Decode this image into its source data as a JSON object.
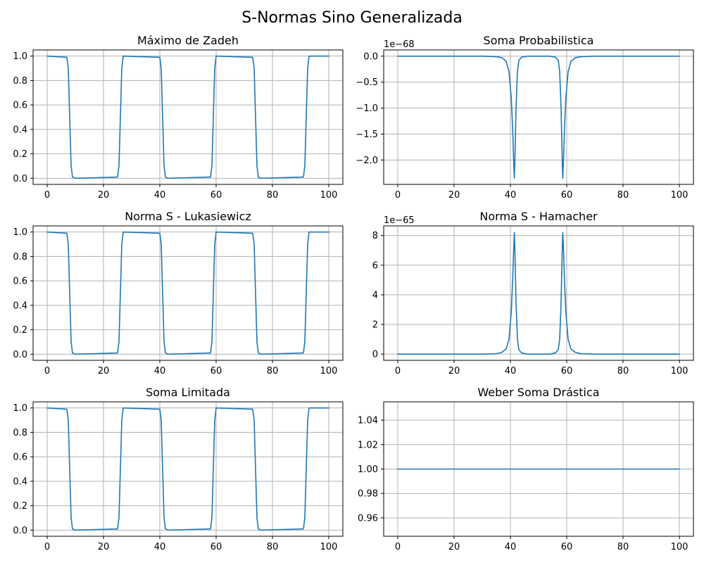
{
  "title": "S-Normas Sino Generalizada",
  "colors": {
    "series": "#1f77b4",
    "grid": "#b0b0b0",
    "frame": "#000000",
    "background": "#ffffff"
  },
  "chart_data": [
    {
      "type": "line",
      "title": "Máximo de Zadeh",
      "xlabel": "",
      "ylabel": "",
      "xlim": [
        -5,
        105
      ],
      "ylim": [
        -0.05,
        1.05
      ],
      "xticks": [
        0,
        20,
        40,
        60,
        80,
        100
      ],
      "yticks": [
        0.0,
        0.2,
        0.4,
        0.6,
        0.8,
        1.0
      ],
      "ytick_labels": [
        "0.0",
        "0.2",
        "0.4",
        "0.6",
        "0.8",
        "1.0"
      ],
      "offset_text": "",
      "grid": true,
      "series": [
        {
          "x": [
            0,
            7,
            7.5,
            8,
            8.5,
            9,
            10,
            25,
            25.5,
            26,
            26.5,
            27,
            40,
            40.5,
            41,
            41.5,
            42,
            43,
            58,
            58.5,
            59,
            59.5,
            60,
            73,
            73.5,
            74,
            74.5,
            75,
            76,
            91,
            91.5,
            92,
            92.5,
            93,
            100
          ],
          "y": [
            1.0,
            0.99,
            0.9,
            0.5,
            0.1,
            0.01,
            0.0,
            0.01,
            0.1,
            0.5,
            0.9,
            1.0,
            0.99,
            0.9,
            0.5,
            0.1,
            0.01,
            0.0,
            0.01,
            0.1,
            0.5,
            0.9,
            1.0,
            0.99,
            0.9,
            0.5,
            0.1,
            0.01,
            0.0,
            0.01,
            0.1,
            0.5,
            0.9,
            1.0,
            1.0
          ]
        }
      ]
    },
    {
      "type": "line",
      "title": "Soma Probabilistica",
      "xlabel": "",
      "ylabel": "",
      "xlim": [
        -5,
        105
      ],
      "ylim": [
        -2.47,
        0.12
      ],
      "xticks": [
        0,
        20,
        40,
        60,
        80,
        100
      ],
      "yticks": [
        0.0,
        -0.5,
        -1.0,
        -1.5,
        -2.0
      ],
      "ytick_labels": [
        "0.0",
        "−0.5",
        "−1.0",
        "−1.5",
        "−2.0"
      ],
      "offset_text": "1e−68",
      "grid": true,
      "series": [
        {
          "x": [
            0,
            30,
            35,
            37,
            38.5,
            39.5,
            40.3,
            40.8,
            41.2,
            41.4,
            41.6,
            42.0,
            42.5,
            43.0,
            44.0,
            46.0,
            50.0,
            54.0,
            56.0,
            57.0,
            57.5,
            58.0,
            58.4,
            58.6,
            58.8,
            59.2,
            59.7,
            60.5,
            61.5,
            63.0,
            65.0,
            70.0,
            100
          ],
          "y": [
            0.0,
            0.0,
            -0.01,
            -0.03,
            -0.1,
            -0.3,
            -0.8,
            -1.4,
            -2.1,
            -2.35,
            -2.0,
            -1.0,
            -0.3,
            -0.08,
            -0.02,
            0.0,
            0.0,
            0.0,
            -0.02,
            -0.08,
            -0.3,
            -1.0,
            -2.0,
            -2.35,
            -2.1,
            -1.4,
            -0.8,
            -0.3,
            -0.1,
            -0.03,
            -0.01,
            0.0,
            0.0
          ]
        }
      ]
    },
    {
      "type": "line",
      "title": "Norma S - Lukasiewicz",
      "xlabel": "",
      "ylabel": "",
      "xlim": [
        -5,
        105
      ],
      "ylim": [
        -0.05,
        1.05
      ],
      "xticks": [
        0,
        20,
        40,
        60,
        80,
        100
      ],
      "yticks": [
        0.0,
        0.2,
        0.4,
        0.6,
        0.8,
        1.0
      ],
      "ytick_labels": [
        "0.0",
        "0.2",
        "0.4",
        "0.6",
        "0.8",
        "1.0"
      ],
      "offset_text": "",
      "grid": true,
      "series": [
        {
          "x": [
            0,
            7,
            7.5,
            8,
            8.5,
            9,
            10,
            25,
            25.5,
            26,
            26.5,
            27,
            40,
            40.5,
            41,
            41.5,
            42,
            43,
            58,
            58.5,
            59,
            59.5,
            60,
            73,
            73.5,
            74,
            74.5,
            75,
            76,
            91,
            91.5,
            92,
            92.5,
            93,
            100
          ],
          "y": [
            1.0,
            0.99,
            0.9,
            0.5,
            0.1,
            0.01,
            0.0,
            0.01,
            0.1,
            0.5,
            0.9,
            1.0,
            0.99,
            0.9,
            0.5,
            0.1,
            0.01,
            0.0,
            0.01,
            0.1,
            0.5,
            0.9,
            1.0,
            0.99,
            0.9,
            0.5,
            0.1,
            0.01,
            0.0,
            0.01,
            0.1,
            0.5,
            0.9,
            1.0,
            1.0
          ]
        }
      ]
    },
    {
      "type": "line",
      "title": "Norma S - Hamacher",
      "xlabel": "",
      "ylabel": "",
      "xlim": [
        -5,
        105
      ],
      "ylim": [
        -0.42,
        8.65
      ],
      "xticks": [
        0,
        20,
        40,
        60,
        80,
        100
      ],
      "yticks": [
        0,
        2,
        4,
        6,
        8
      ],
      "ytick_labels": [
        "0",
        "2",
        "4",
        "6",
        "8"
      ],
      "offset_text": "1e−65",
      "grid": true,
      "series": [
        {
          "x": [
            0,
            30,
            35,
            37,
            38.5,
            39.5,
            40.3,
            40.8,
            41.2,
            41.4,
            41.6,
            42.0,
            42.5,
            43.0,
            44.0,
            46.0,
            50.0,
            54.0,
            56.0,
            57.0,
            57.5,
            58.0,
            58.4,
            58.6,
            58.8,
            59.2,
            59.7,
            60.5,
            61.5,
            63.0,
            65.0,
            70.0,
            100
          ],
          "y": [
            0.0,
            0.0,
            0.03,
            0.12,
            0.35,
            1.0,
            2.8,
            5.0,
            7.3,
            8.2,
            7.0,
            3.5,
            1.0,
            0.3,
            0.08,
            0.0,
            0.0,
            0.0,
            0.08,
            0.3,
            1.0,
            3.5,
            7.0,
            8.2,
            7.3,
            5.0,
            2.8,
            1.0,
            0.35,
            0.12,
            0.03,
            0.0,
            0.0
          ]
        }
      ]
    },
    {
      "type": "line",
      "title": "Soma Limitada",
      "xlabel": "",
      "ylabel": "",
      "xlim": [
        -5,
        105
      ],
      "ylim": [
        -0.05,
        1.05
      ],
      "xticks": [
        0,
        20,
        40,
        60,
        80,
        100
      ],
      "yticks": [
        0.0,
        0.2,
        0.4,
        0.6,
        0.8,
        1.0
      ],
      "ytick_labels": [
        "0.0",
        "0.2",
        "0.4",
        "0.6",
        "0.8",
        "1.0"
      ],
      "offset_text": "",
      "grid": true,
      "series": [
        {
          "x": [
            0,
            7,
            7.5,
            8,
            8.5,
            9,
            10,
            25,
            25.5,
            26,
            26.5,
            27,
            40,
            40.5,
            41,
            41.5,
            42,
            43,
            58,
            58.5,
            59,
            59.5,
            60,
            73,
            73.5,
            74,
            74.5,
            75,
            76,
            91,
            91.5,
            92,
            92.5,
            93,
            100
          ],
          "y": [
            1.0,
            0.99,
            0.9,
            0.5,
            0.1,
            0.01,
            0.0,
            0.01,
            0.1,
            0.5,
            0.9,
            1.0,
            0.99,
            0.9,
            0.5,
            0.1,
            0.01,
            0.0,
            0.01,
            0.1,
            0.5,
            0.9,
            1.0,
            0.99,
            0.9,
            0.5,
            0.1,
            0.01,
            0.0,
            0.01,
            0.1,
            0.5,
            0.9,
            1.0,
            1.0
          ]
        }
      ]
    },
    {
      "type": "line",
      "title": "Weber Soma Drástica",
      "xlabel": "",
      "ylabel": "",
      "xlim": [
        -5,
        105
      ],
      "ylim": [
        0.945,
        1.055
      ],
      "xticks": [
        0,
        20,
        40,
        60,
        80,
        100
      ],
      "yticks": [
        0.96,
        0.98,
        1.0,
        1.02,
        1.04
      ],
      "ytick_labels": [
        "0.96",
        "0.98",
        "1.00",
        "1.02",
        "1.04"
      ],
      "offset_text": "",
      "grid": true,
      "series": [
        {
          "x": [
            0,
            100
          ],
          "y": [
            1.0,
            1.0
          ]
        }
      ]
    }
  ]
}
